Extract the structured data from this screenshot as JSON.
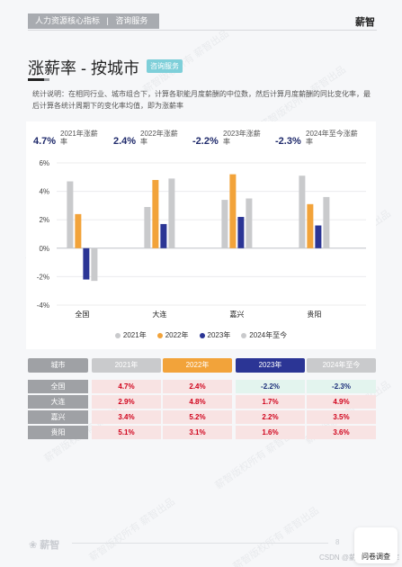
{
  "header": {
    "tag_left": "人力资源核心指标",
    "tag_right": "咨询服务",
    "brand": "薪智"
  },
  "title": "涨薪率 - 按城市",
  "badge": "咨询服务",
  "description": "统计说明：在相同行业、城市组合下，计算各职能月度薪酬的中位数，然后计算月度薪酬的同比变化率，最后计算各统计周期下的变化率均值，即为涨薪率",
  "kpis": [
    {
      "value": "4.7%",
      "label": "2021年涨薪率"
    },
    {
      "value": "2.4%",
      "label": "2022年涨薪率"
    },
    {
      "value": "-2.2%",
      "label": "2023年涨薪率"
    },
    {
      "value": "-2.3%",
      "label": "2024年至今涨薪率"
    }
  ],
  "chart_data": {
    "type": "bar",
    "categories": [
      "全国",
      "大连",
      "嘉兴",
      "贵阳"
    ],
    "series": [
      {
        "name": "2021年",
        "values": [
          4.7,
          2.9,
          3.4,
          5.1
        ],
        "color": "#c9cacc"
      },
      {
        "name": "2022年",
        "values": [
          2.4,
          4.8,
          5.2,
          3.1
        ],
        "color": "#f2a33a"
      },
      {
        "name": "2023年",
        "values": [
          -2.2,
          1.7,
          2.2,
          1.6
        ],
        "color": "#2b3595"
      },
      {
        "name": "2024年至今",
        "values": [
          -2.3,
          4.9,
          3.5,
          3.6
        ],
        "color": "#c9cacc"
      }
    ],
    "ylim": [
      -4,
      6
    ],
    "yticks": [
      "-4%",
      "-2%",
      "0%",
      "2%",
      "4%",
      "6%"
    ],
    "grid": true,
    "legend": "bottom"
  },
  "table": {
    "headers": [
      "城市",
      "2021年",
      "2022年",
      "2023年",
      "2024年至今"
    ],
    "header_colors": [
      "#9fa1a5",
      "#c9cacc",
      "#f2a33a",
      "#2b3595",
      "#c9cacc"
    ],
    "rows": [
      {
        "city": "全国",
        "values": [
          "4.7%",
          "2.4%",
          "-2.2%",
          "-2.3%"
        ]
      },
      {
        "city": "大连",
        "values": [
          "2.9%",
          "4.8%",
          "1.7%",
          "4.9%"
        ]
      },
      {
        "city": "嘉兴",
        "values": [
          "3.4%",
          "5.2%",
          "2.2%",
          "3.5%"
        ]
      },
      {
        "city": "贵阳",
        "values": [
          "5.1%",
          "3.1%",
          "1.6%",
          "3.6%"
        ]
      }
    ]
  },
  "footer": {
    "logo": "薪智",
    "page": "8",
    "survey": "问卷调查",
    "csdn": "CSDN @薪智薪酬数据库"
  },
  "watermark": "薪智版权所有 薪智出品"
}
